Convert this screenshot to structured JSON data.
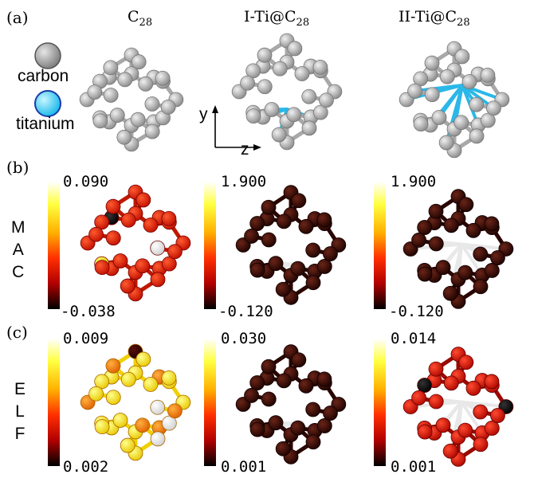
{
  "panel_labels": {
    "a": "(a)",
    "b": "(b)",
    "c": "(c)"
  },
  "structures": [
    {
      "base": "C",
      "sub": "28"
    },
    {
      "base": "I-Ti@C",
      "sub": "28"
    },
    {
      "base": "II-Ti@C",
      "sub": "28"
    }
  ],
  "legend": {
    "carbon": {
      "label": "carbon",
      "color": "#9a9a9a"
    },
    "titanium": {
      "label": "titanium",
      "color": "#26c6f0"
    }
  },
  "axes": {
    "y": "y",
    "z": "z"
  },
  "mac": {
    "letters": [
      "M",
      "A",
      "C"
    ],
    "ranges": [
      {
        "max": "0.090",
        "min": "-0.038"
      },
      {
        "max": "1.900",
        "min": "-0.120"
      },
      {
        "max": "1.900",
        "min": "-0.120"
      }
    ]
  },
  "elf": {
    "letters": [
      "E",
      "L",
      "F"
    ],
    "ranges": [
      {
        "max": "0.009",
        "min": "0.002"
      },
      {
        "max": "0.030",
        "min": "0.001"
      },
      {
        "max": "0.014",
        "min": "0.001"
      }
    ]
  },
  "colors": {
    "bond_gray": "#b0b0b0",
    "ti_bond": "#2ab8e8",
    "dark_atom": "#3a0a04",
    "red_atom": "#dd1d00",
    "white_bond": "#e8e8e8"
  }
}
